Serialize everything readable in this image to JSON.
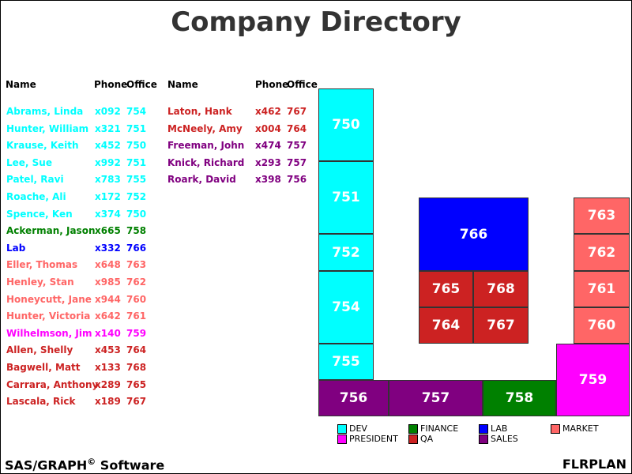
{
  "title": "Company Directory",
  "headers": {
    "name": "Name",
    "phone": "Phone",
    "office": "Office"
  },
  "colors": {
    "DEV": "#00ffff",
    "FINANCE": "#008000",
    "LAB": "#0000ff",
    "MARKET": "#ff6666",
    "PRESIDENT": "#ff00ff",
    "QA": "#cc2222",
    "SALES": "#800080"
  },
  "directory_left": [
    {
      "name": "Abrams, Linda",
      "phone": "x092",
      "office": "754",
      "dept": "DEV"
    },
    {
      "name": "Hunter, William",
      "phone": "x321",
      "office": "751",
      "dept": "DEV"
    },
    {
      "name": "Krause, Keith",
      "phone": "x452",
      "office": "750",
      "dept": "DEV"
    },
    {
      "name": "Lee, Sue",
      "phone": "x992",
      "office": "751",
      "dept": "DEV"
    },
    {
      "name": "Patel, Ravi",
      "phone": "x783",
      "office": "755",
      "dept": "DEV"
    },
    {
      "name": "Roache, Ali",
      "phone": "x172",
      "office": "752",
      "dept": "DEV"
    },
    {
      "name": "Spence, Ken",
      "phone": "x374",
      "office": "750",
      "dept": "DEV"
    },
    {
      "name": "Ackerman, Jason",
      "phone": "x665",
      "office": "758",
      "dept": "FINANCE"
    },
    {
      "name": "Lab",
      "phone": "x332",
      "office": "766",
      "dept": "LAB"
    },
    {
      "name": "Eller, Thomas",
      "phone": "x648",
      "office": "763",
      "dept": "MARKET"
    },
    {
      "name": "Henley, Stan",
      "phone": "x985",
      "office": "762",
      "dept": "MARKET"
    },
    {
      "name": "Honeycutt, Jane",
      "phone": "x944",
      "office": "760",
      "dept": "MARKET"
    },
    {
      "name": "Hunter, Victoria",
      "phone": "x642",
      "office": "761",
      "dept": "MARKET"
    },
    {
      "name": "Wilhelmson, Jim",
      "phone": "x140",
      "office": "759",
      "dept": "PRESIDENT"
    },
    {
      "name": "Allen, Shelly",
      "phone": "x453",
      "office": "764",
      "dept": "QA"
    },
    {
      "name": "Bagwell, Matt",
      "phone": "x133",
      "office": "768",
      "dept": "QA"
    },
    {
      "name": "Carrara, Anthony",
      "phone": "x289",
      "office": "765",
      "dept": "QA"
    },
    {
      "name": "Lascala, Rick",
      "phone": "x189",
      "office": "767",
      "dept": "QA"
    }
  ],
  "directory_right": [
    {
      "name": "Laton, Hank",
      "phone": "x462",
      "office": "767",
      "dept": "QA"
    },
    {
      "name": "McNeely, Amy",
      "phone": "x004",
      "office": "764",
      "dept": "QA"
    },
    {
      "name": "Freeman, John",
      "phone": "x474",
      "office": "757",
      "dept": "SALES"
    },
    {
      "name": "Knick, Richard",
      "phone": "x293",
      "office": "757",
      "dept": "SALES"
    },
    {
      "name": "Roark, David",
      "phone": "x398",
      "office": "756",
      "dept": "SALES"
    }
  ],
  "rooms": [
    {
      "label": "750",
      "dept": "DEV"
    },
    {
      "label": "751",
      "dept": "DEV"
    },
    {
      "label": "752",
      "dept": "DEV"
    },
    {
      "label": "754",
      "dept": "DEV"
    },
    {
      "label": "755",
      "dept": "DEV"
    },
    {
      "label": "756",
      "dept": "SALES"
    },
    {
      "label": "757",
      "dept": "SALES"
    },
    {
      "label": "758",
      "dept": "FINANCE"
    },
    {
      "label": "759",
      "dept": "PRESIDENT"
    },
    {
      "label": "760",
      "dept": "MARKET"
    },
    {
      "label": "761",
      "dept": "MARKET"
    },
    {
      "label": "762",
      "dept": "MARKET"
    },
    {
      "label": "763",
      "dept": "MARKET"
    },
    {
      "label": "764",
      "dept": "QA"
    },
    {
      "label": "765",
      "dept": "QA"
    },
    {
      "label": "766",
      "dept": "LAB"
    },
    {
      "label": "767",
      "dept": "QA"
    },
    {
      "label": "768",
      "dept": "QA"
    }
  ],
  "legend": [
    {
      "label": "DEV",
      "dept": "DEV"
    },
    {
      "label": "FINANCE",
      "dept": "FINANCE"
    },
    {
      "label": "LAB",
      "dept": "LAB"
    },
    {
      "label": "MARKET",
      "dept": "MARKET"
    },
    {
      "label": "PRESIDENT",
      "dept": "PRESIDENT"
    },
    {
      "label": "QA",
      "dept": "QA"
    },
    {
      "label": "SALES",
      "dept": "SALES"
    }
  ],
  "footer": {
    "left": "SAS/GRAPH",
    "left_mark": "©",
    "left_suffix": " Software",
    "right": "FLRPLAN"
  }
}
